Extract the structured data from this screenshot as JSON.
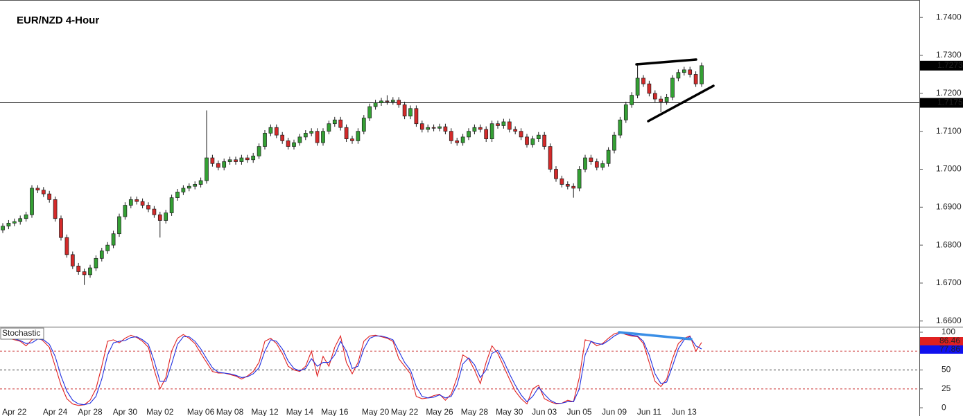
{
  "chart_data": [
    {
      "type": "candlestick",
      "title": "EUR/NZD 4-Hour",
      "open": [
        1.684,
        1.685,
        1.6858,
        1.6862,
        1.687,
        1.688,
        1.695,
        1.6945,
        1.6935,
        1.692,
        1.687,
        1.682,
        1.6775,
        1.6745,
        1.673,
        1.6722,
        1.674,
        1.6765,
        1.6785,
        1.68,
        1.683,
        1.6875,
        1.6905,
        1.692,
        1.6915,
        1.6905,
        1.6895,
        1.688,
        1.6865,
        1.6885,
        1.6925,
        1.694,
        1.695,
        1.6955,
        1.696,
        1.697,
        1.703,
        1.7015,
        1.7005,
        1.702,
        1.7025,
        1.702,
        1.703,
        1.7025,
        1.7035,
        1.706,
        1.7095,
        1.711,
        1.709,
        1.7075,
        1.706,
        1.707,
        1.7085,
        1.7095,
        1.71,
        1.707,
        1.71,
        1.712,
        1.713,
        1.711,
        1.708,
        1.7075,
        1.71,
        1.7135,
        1.7165,
        1.7175,
        1.718,
        1.7178,
        1.7182,
        1.717,
        1.714,
        1.716,
        1.712,
        1.7105,
        1.711,
        1.7108,
        1.7112,
        1.71,
        1.7075,
        1.707,
        1.7085,
        1.71,
        1.711,
        1.7105,
        1.708,
        1.712,
        1.7115,
        1.7125,
        1.7105,
        1.71,
        1.7085,
        1.7065,
        1.708,
        1.709,
        1.706,
        1.7,
        1.6975,
        1.696,
        1.6955,
        1.695,
        1.7,
        1.703,
        1.702,
        1.7005,
        1.7015,
        1.705,
        1.709,
        1.713,
        1.717,
        1.7195,
        1.724,
        1.7225,
        1.72,
        1.7185,
        1.7178,
        1.719,
        1.724,
        1.7255,
        1.7262,
        1.725,
        1.7225
      ],
      "high": [
        1.6858,
        1.6866,
        1.687,
        1.6878,
        1.6888,
        1.6958,
        1.6958,
        1.6953,
        1.6943,
        1.6928,
        1.6878,
        1.6828,
        1.6783,
        1.6753,
        1.6738,
        1.6748,
        1.6773,
        1.6793,
        1.6808,
        1.6838,
        1.6883,
        1.6913,
        1.6928,
        1.6928,
        1.6923,
        1.6913,
        1.6903,
        1.6888,
        1.6893,
        1.6933,
        1.6948,
        1.6958,
        1.6963,
        1.6968,
        1.6978,
        1.7155,
        1.7038,
        1.7023,
        1.7028,
        1.7033,
        1.7033,
        1.7038,
        1.7038,
        1.7043,
        1.7068,
        1.7103,
        1.7118,
        1.7118,
        1.7098,
        1.7083,
        1.7078,
        1.7093,
        1.7103,
        1.7108,
        1.7108,
        1.7108,
        1.7128,
        1.7138,
        1.7138,
        1.7118,
        1.7088,
        1.7108,
        1.7143,
        1.7173,
        1.7183,
        1.7188,
        1.7195,
        1.719,
        1.719,
        1.7178,
        1.7168,
        1.7168,
        1.7128,
        1.7118,
        1.7118,
        1.712,
        1.712,
        1.7108,
        1.7083,
        1.7093,
        1.7108,
        1.7118,
        1.7118,
        1.7113,
        1.7128,
        1.7128,
        1.7133,
        1.7133,
        1.7113,
        1.7108,
        1.7093,
        1.7088,
        1.7098,
        1.7098,
        1.7068,
        1.7008,
        1.6983,
        1.6968,
        1.6963,
        1.7008,
        1.7038,
        1.7038,
        1.7028,
        1.7023,
        1.7058,
        1.7098,
        1.7138,
        1.7178,
        1.7203,
        1.728,
        1.7248,
        1.7233,
        1.7208,
        1.7193,
        1.7198,
        1.7248,
        1.7263,
        1.727,
        1.727,
        1.7258,
        1.7281
      ],
      "low": [
        1.6832,
        1.6842,
        1.685,
        1.6854,
        1.6862,
        1.6872,
        1.6937,
        1.6927,
        1.6912,
        1.6862,
        1.6812,
        1.6767,
        1.6737,
        1.6722,
        1.6695,
        1.6714,
        1.6732,
        1.6757,
        1.6777,
        1.6792,
        1.6822,
        1.6867,
        1.6897,
        1.6907,
        1.6897,
        1.6887,
        1.6872,
        1.682,
        1.6857,
        1.6877,
        1.6917,
        1.6932,
        1.6942,
        1.6947,
        1.6952,
        1.6962,
        1.7007,
        1.6997,
        1.6997,
        1.7012,
        1.7012,
        1.7012,
        1.7017,
        1.7017,
        1.7027,
        1.7052,
        1.7087,
        1.7082,
        1.7067,
        1.7052,
        1.7052,
        1.7062,
        1.7077,
        1.7087,
        1.7062,
        1.7062,
        1.7092,
        1.7112,
        1.7102,
        1.7072,
        1.7067,
        1.7067,
        1.7092,
        1.7127,
        1.7157,
        1.7167,
        1.717,
        1.717,
        1.7162,
        1.7132,
        1.7132,
        1.7112,
        1.7097,
        1.7097,
        1.71,
        1.71,
        1.7092,
        1.7067,
        1.7062,
        1.7062,
        1.7077,
        1.7092,
        1.7097,
        1.7072,
        1.7072,
        1.7107,
        1.7107,
        1.7097,
        1.7092,
        1.7077,
        1.7057,
        1.7057,
        1.7072,
        1.7052,
        1.6992,
        1.6967,
        1.6952,
        1.6947,
        1.6925,
        1.6942,
        1.6992,
        1.7012,
        1.6997,
        1.6997,
        1.7007,
        1.7042,
        1.7082,
        1.7122,
        1.7162,
        1.7187,
        1.7217,
        1.7192,
        1.7177,
        1.715,
        1.717,
        1.7182,
        1.7232,
        1.7247,
        1.7242,
        1.7217,
        1.7217
      ],
      "close": [
        1.685,
        1.6858,
        1.6862,
        1.687,
        1.688,
        1.695,
        1.6945,
        1.6935,
        1.692,
        1.687,
        1.682,
        1.6775,
        1.6745,
        1.673,
        1.6722,
        1.674,
        1.6765,
        1.6785,
        1.68,
        1.683,
        1.6875,
        1.6905,
        1.692,
        1.6915,
        1.6905,
        1.6895,
        1.688,
        1.6865,
        1.6885,
        1.6925,
        1.694,
        1.695,
        1.6955,
        1.696,
        1.697,
        1.703,
        1.7015,
        1.7005,
        1.702,
        1.7025,
        1.702,
        1.703,
        1.7025,
        1.7035,
        1.706,
        1.7095,
        1.711,
        1.709,
        1.7075,
        1.706,
        1.707,
        1.7085,
        1.7095,
        1.71,
        1.707,
        1.71,
        1.712,
        1.713,
        1.711,
        1.708,
        1.7075,
        1.71,
        1.7135,
        1.7165,
        1.7175,
        1.718,
        1.7178,
        1.7182,
        1.717,
        1.714,
        1.716,
        1.712,
        1.7105,
        1.711,
        1.7108,
        1.7112,
        1.71,
        1.7075,
        1.707,
        1.7085,
        1.71,
        1.711,
        1.7105,
        1.708,
        1.712,
        1.7115,
        1.7125,
        1.7105,
        1.71,
        1.7085,
        1.7065,
        1.708,
        1.709,
        1.706,
        1.7,
        1.6975,
        1.696,
        1.6955,
        1.695,
        1.7,
        1.703,
        1.702,
        1.7005,
        1.7015,
        1.705,
        1.709,
        1.713,
        1.717,
        1.7195,
        1.724,
        1.7225,
        1.72,
        1.7185,
        1.7178,
        1.719,
        1.724,
        1.7255,
        1.7262,
        1.725,
        1.7225,
        1.7273
      ],
      "colors": {
        "up": "#34a034",
        "down": "#d42a2a",
        "outline": "#1a1a1a"
      },
      "ylim": [
        1.6585,
        1.7446
      ],
      "yticks": [
        {
          "value": 1.66,
          "label": "1.6600"
        },
        {
          "value": 1.67,
          "label": "1.6700"
        },
        {
          "value": 1.68,
          "label": "1.6800"
        },
        {
          "value": 1.69,
          "label": "1.6900"
        },
        {
          "value": 1.7,
          "label": "1.7000"
        },
        {
          "value": 1.71,
          "label": "1.7100"
        },
        {
          "value": 1.72,
          "label": "1.7200"
        },
        {
          "value": 1.73,
          "label": "1.7300"
        },
        {
          "value": 1.74,
          "label": "1.7400"
        }
      ],
      "horizontal_line": 1.7175
    },
    {
      "type": "line",
      "title": "Stochastic",
      "categories": [
        null,
        null,
        "Apr 22",
        null,
        null,
        null,
        null,
        null,
        null,
        "Apr 24",
        null,
        null,
        null,
        null,
        null,
        "Apr 28",
        null,
        null,
        null,
        null,
        null,
        "Apr 30",
        null,
        null,
        null,
        null,
        null,
        "May 02",
        null,
        null,
        null,
        null,
        null,
        null,
        "May 06",
        null,
        null,
        null,
        null,
        "May 08",
        null,
        null,
        null,
        null,
        null,
        "May 12",
        null,
        null,
        null,
        null,
        null,
        "May 14",
        null,
        null,
        null,
        null,
        null,
        "May 16",
        null,
        null,
        null,
        null,
        null,
        null,
        "May 20",
        null,
        null,
        null,
        null,
        "May 22",
        null,
        null,
        null,
        null,
        null,
        "May 26",
        null,
        null,
        null,
        null,
        null,
        "May 28",
        null,
        null,
        null,
        null,
        null,
        "May 30",
        null,
        null,
        null,
        null,
        null,
        "Jun 03",
        null,
        null,
        null,
        null,
        null,
        "Jun 05",
        null,
        null,
        null,
        null,
        null,
        "Jun 09",
        null,
        null,
        null,
        null,
        null,
        "Jun 11",
        null,
        null,
        null,
        null,
        null,
        "Jun 13",
        null,
        null,
        null
      ],
      "series": [
        {
          "color": "#e02020",
          "label_bg": "#e02020",
          "values": [
            95,
            92,
            90,
            88,
            82,
            90,
            94,
            88,
            80,
            55,
            30,
            12,
            5,
            3,
            4,
            10,
            25,
            55,
            88,
            90,
            86,
            92,
            96,
            93,
            88,
            80,
            50,
            25,
            40,
            75,
            92,
            97,
            92,
            85,
            72,
            60,
            48,
            46,
            46,
            44,
            42,
            38,
            42,
            48,
            60,
            88,
            92,
            85,
            72,
            55,
            50,
            48,
            55,
            75,
            42,
            68,
            55,
            80,
            95,
            60,
            45,
            60,
            88,
            95,
            96,
            94,
            92,
            88,
            65,
            55,
            45,
            15,
            12,
            13,
            16,
            18,
            10,
            18,
            40,
            70,
            65,
            50,
            32,
            60,
            82,
            72,
            55,
            38,
            22,
            12,
            5,
            25,
            30,
            12,
            8,
            5,
            6,
            10,
            8,
            40,
            90,
            88,
            82,
            85,
            92,
            98,
            100,
            97,
            95,
            94,
            85,
            60,
            35,
            28,
            38,
            65,
            85,
            92,
            95,
            75,
            86.46
          ]
        },
        {
          "color": "#2030e0",
          "label_bg": "#1010ee",
          "values": [
            96,
            94,
            91,
            89,
            85,
            86,
            91,
            90,
            84,
            68,
            42,
            22,
            10,
            5,
            4,
            6,
            15,
            38,
            70,
            86,
            88,
            89,
            93,
            94,
            90,
            84,
            62,
            35,
            35,
            58,
            84,
            94,
            94,
            88,
            78,
            65,
            53,
            47,
            46,
            45,
            43,
            40,
            41,
            45,
            53,
            75,
            90,
            88,
            78,
            62,
            52,
            49,
            52,
            65,
            55,
            60,
            60,
            70,
            88,
            75,
            52,
            55,
            78,
            92,
            95,
            95,
            93,
            90,
            75,
            60,
            50,
            28,
            15,
            13,
            14,
            17,
            13,
            15,
            30,
            58,
            66,
            57,
            40,
            50,
            72,
            76,
            62,
            45,
            30,
            17,
            8,
            15,
            27,
            18,
            10,
            6,
            6,
            8,
            8,
            25,
            70,
            88,
            85,
            84,
            89,
            95,
            99,
            98,
            96,
            95,
            88,
            70,
            45,
            32,
            34,
            55,
            78,
            90,
            94,
            82,
            77.86
          ]
        }
      ],
      "ylim": [
        -10,
        106.4
      ],
      "yticks": [
        0,
        25,
        50,
        100
      ],
      "levels": [
        25,
        50,
        75
      ]
    }
  ]
}
